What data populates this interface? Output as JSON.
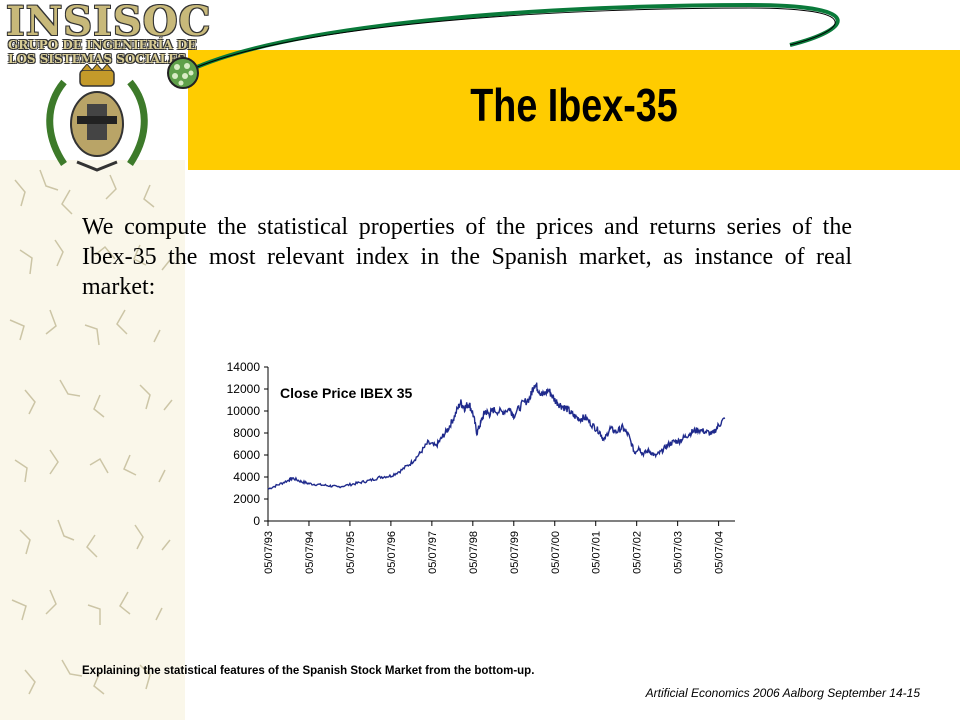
{
  "logo": {
    "name": "INSISOC",
    "line1": "GRUPO DE INGENIERÍA DE",
    "line2": "LOS SISTEMAS SOCIALES"
  },
  "slide": {
    "title": "The Ibex-35",
    "body": "We compute the statistical properties of the prices and returns series of the Ibex-35 the most relevant index in the Spanish market, as instance of real market:",
    "footer_note": "Explaining the statistical features of the Spanish Stock Market from the bottom-up.",
    "footer_conference": "Artificial Economics 2006 Aalborg September 14-15"
  },
  "colors": {
    "title_band": "#ffcc00",
    "series_line": "#1f2a8c"
  },
  "chart_data": {
    "type": "line",
    "title": "Close Price IBEX 35",
    "xlabel": "",
    "ylabel": "",
    "ylim": [
      0,
      14000
    ],
    "yticks": [
      "0",
      "2000",
      "4000",
      "6000",
      "8000",
      "10000",
      "12000",
      "14000"
    ],
    "categories": [
      "05/07/93",
      "05/07/94",
      "05/07/95",
      "05/07/96",
      "05/07/97",
      "05/07/98",
      "05/07/99",
      "05/07/00",
      "05/07/01",
      "05/07/02",
      "05/07/03",
      "05/07/04"
    ],
    "grid": false,
    "legend": "none",
    "series": [
      {
        "x": [
          1993.5,
          1993.75,
          1994.0,
          1994.1,
          1994.3,
          1994.5,
          1994.75,
          1995.0,
          1995.2,
          1995.5,
          1995.75,
          1996.0,
          1996.25,
          1996.5,
          1996.75,
          1997.0,
          1997.2,
          1997.4,
          1997.6,
          1997.75,
          1997.9,
          1998.05,
          1998.2,
          1998.3,
          1998.4,
          1998.5,
          1998.6,
          1998.7,
          1998.8,
          1998.9,
          1999.0,
          1999.2,
          1999.4,
          1999.5,
          1999.7,
          1999.9,
          2000.0,
          2000.1,
          2000.2,
          2000.35,
          2000.5,
          2000.65,
          2000.8,
          2000.95,
          2001.1,
          2001.25,
          2001.45,
          2001.6,
          2001.7,
          2001.85,
          2002.0,
          2002.15,
          2002.3,
          2002.45,
          2002.55,
          2002.65,
          2002.8,
          2002.95,
          2003.1,
          2003.25,
          2003.4,
          2003.55,
          2003.7,
          2003.85,
          2004.0,
          2004.2,
          2004.35,
          2004.5,
          2004.65
        ],
        "y": [
          2900,
          3300,
          3700,
          3900,
          3600,
          3400,
          3300,
          3200,
          3100,
          3300,
          3500,
          3700,
          4000,
          4100,
          4600,
          5300,
          6100,
          7100,
          6800,
          7600,
          8400,
          9500,
          10800,
          10300,
          10700,
          9800,
          8000,
          9000,
          10000,
          9700,
          10100,
          9900,
          10200,
          9600,
          10600,
          11200,
          12500,
          12000,
          11400,
          11900,
          11000,
          10500,
          10200,
          9600,
          9300,
          9400,
          8600,
          8100,
          7300,
          8400,
          8100,
          8500,
          7800,
          6200,
          6700,
          6100,
          6400,
          5900,
          6300,
          6900,
          7200,
          7300,
          7700,
          8100,
          8300,
          8100,
          7900,
          8700,
          9300
        ]
      }
    ]
  }
}
